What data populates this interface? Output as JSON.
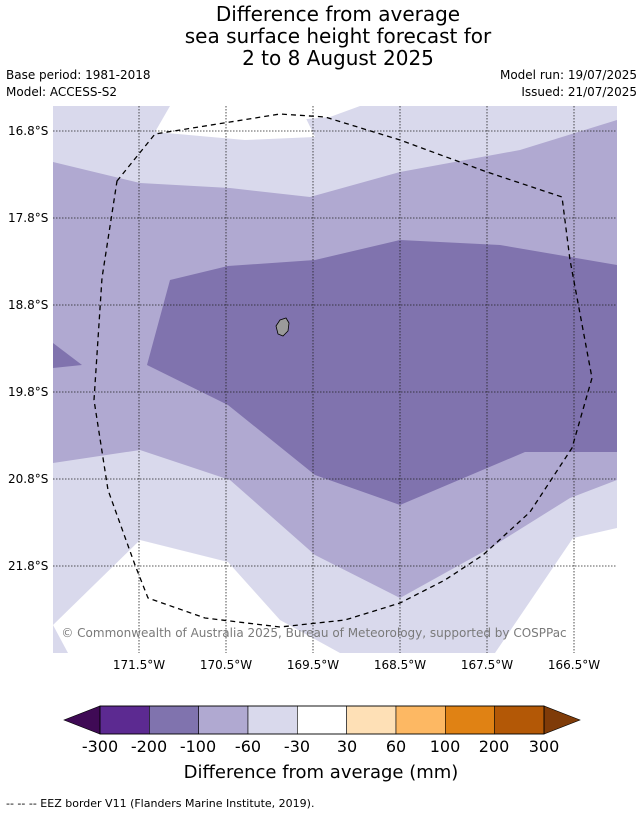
{
  "title": {
    "line1": "Difference from average",
    "line2": "sea surface height forecast for",
    "line3": "2 to 8 August 2025"
  },
  "meta": {
    "base_period": "Base period: 1981-2018",
    "model": "Model: ACCESS-S2",
    "model_run": "Model run: 19/07/2025",
    "issued": "Issued: 21/07/2025"
  },
  "map": {
    "latitude_labels": [
      "16.8°S",
      "17.8°S",
      "18.8°S",
      "19.8°S",
      "20.8°S",
      "21.8°S"
    ],
    "longitude_labels": [
      "171.5°W",
      "170.5°W",
      "169.5°W",
      "168.5°W",
      "167.5°W",
      "166.5°W"
    ],
    "copyright": "© Commonwealth of Australia 2025, Bureau of Meteorology, supported by COSPPac"
  },
  "colorbar": {
    "title": "Difference from average (mm)",
    "tick_labels": [
      "-300",
      "-200",
      "-100",
      "-60",
      "-30",
      "30",
      "60",
      "100",
      "200",
      "300"
    ],
    "colors": {
      "below_min": "#3f0a55",
      "bins": [
        "#5c2a91",
        "#8073ae",
        "#b0a9d1",
        "#d9d9ec",
        "#ffffff",
        "#fee0b6",
        "#fdb863",
        "#e08214",
        "#b35806"
      ],
      "above_max": "#7f3b08"
    }
  },
  "legend_note": "--  --  -- EEZ border V11 (Flanders Marine Institute, 2019)."
}
